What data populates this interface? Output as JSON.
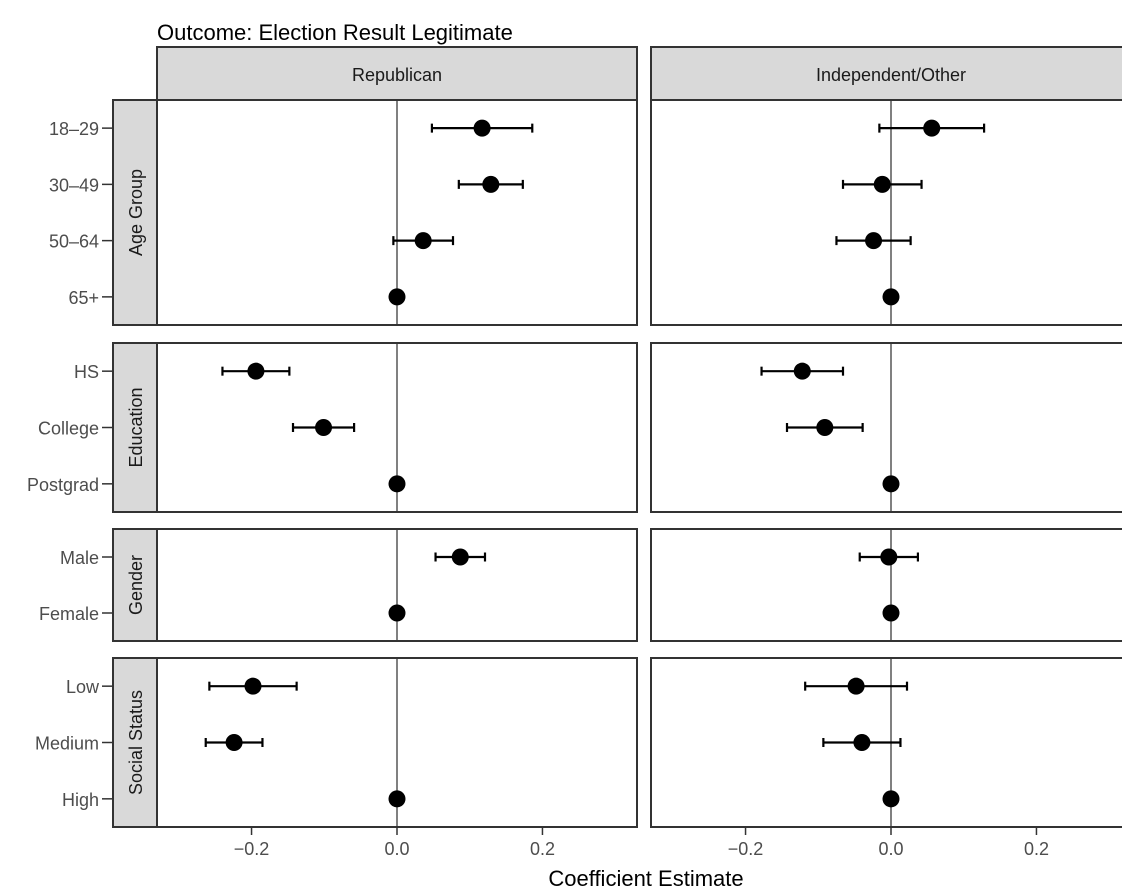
{
  "chart_data": {
    "type": "scatter",
    "subtype": "coefficient-plot-with-error-bars",
    "title": "Outcome: Election Result Legitimate",
    "xlabel": "Coefficient Estimate",
    "ylabel": "",
    "xlim": [
      -0.33,
      0.33
    ],
    "xticks": [
      "-0.2",
      "0.0",
      "0.2"
    ],
    "reference_line_x": 0,
    "grid": false,
    "columns": [
      "Republican",
      "Independent/Other"
    ],
    "rows": [
      {
        "name": "Age Group",
        "categories": [
          "18-29",
          "30-49",
          "50-64",
          "65+"
        ],
        "panels": [
          {
            "column": "Republican",
            "estimates": [
              0.117,
              0.129,
              0.036,
              0.0
            ],
            "ci_low": [
              0.048,
              0.085,
              -0.005,
              0.0
            ],
            "ci_high": [
              0.186,
              0.173,
              0.077,
              0.0
            ]
          },
          {
            "column": "Independent/Other",
            "estimates": [
              0.056,
              -0.012,
              -0.024,
              0.0
            ],
            "ci_low": [
              -0.016,
              -0.066,
              -0.075,
              0.0
            ],
            "ci_high": [
              0.128,
              0.042,
              0.027,
              0.0
            ]
          }
        ]
      },
      {
        "name": "Education",
        "categories": [
          "HS",
          "College",
          "Postgrad"
        ],
        "panels": [
          {
            "column": "Republican",
            "estimates": [
              -0.194,
              -0.101,
              0.0
            ],
            "ci_low": [
              -0.24,
              -0.143,
              0.0
            ],
            "ci_high": [
              -0.148,
              -0.059,
              0.0
            ]
          },
          {
            "column": "Independent/Other",
            "estimates": [
              -0.122,
              -0.091,
              0.0
            ],
            "ci_low": [
              -0.178,
              -0.143,
              0.0
            ],
            "ci_high": [
              -0.066,
              -0.039,
              0.0
            ]
          }
        ]
      },
      {
        "name": "Gender",
        "categories": [
          "Male",
          "Female"
        ],
        "panels": [
          {
            "column": "Republican",
            "estimates": [
              0.087,
              0.0
            ],
            "ci_low": [
              0.053,
              0.0
            ],
            "ci_high": [
              0.121,
              0.0
            ]
          },
          {
            "column": "Independent/Other",
            "estimates": [
              -0.003,
              0.0
            ],
            "ci_low": [
              -0.043,
              0.0
            ],
            "ci_high": [
              0.037,
              0.0
            ]
          }
        ]
      },
      {
        "name": "Social Status",
        "categories": [
          "Low",
          "Medium",
          "High"
        ],
        "panels": [
          {
            "column": "Republican",
            "estimates": [
              -0.198,
              -0.224,
              0.0
            ],
            "ci_low": [
              -0.258,
              -0.263,
              0.0
            ],
            "ci_high": [
              -0.138,
              -0.185,
              0.0
            ]
          },
          {
            "column": "Independent/Other",
            "estimates": [
              -0.048,
              -0.04,
              0.0
            ],
            "ci_low": [
              -0.118,
              -0.093,
              0.0
            ],
            "ci_high": [
              0.022,
              0.013,
              0.0
            ]
          }
        ]
      }
    ]
  },
  "colors": {
    "strip_fill": "#d9d9d9",
    "panel_border": "#333333",
    "reference_line": "#808080",
    "points": "#000000",
    "tick_label": "#4d4d4d"
  }
}
